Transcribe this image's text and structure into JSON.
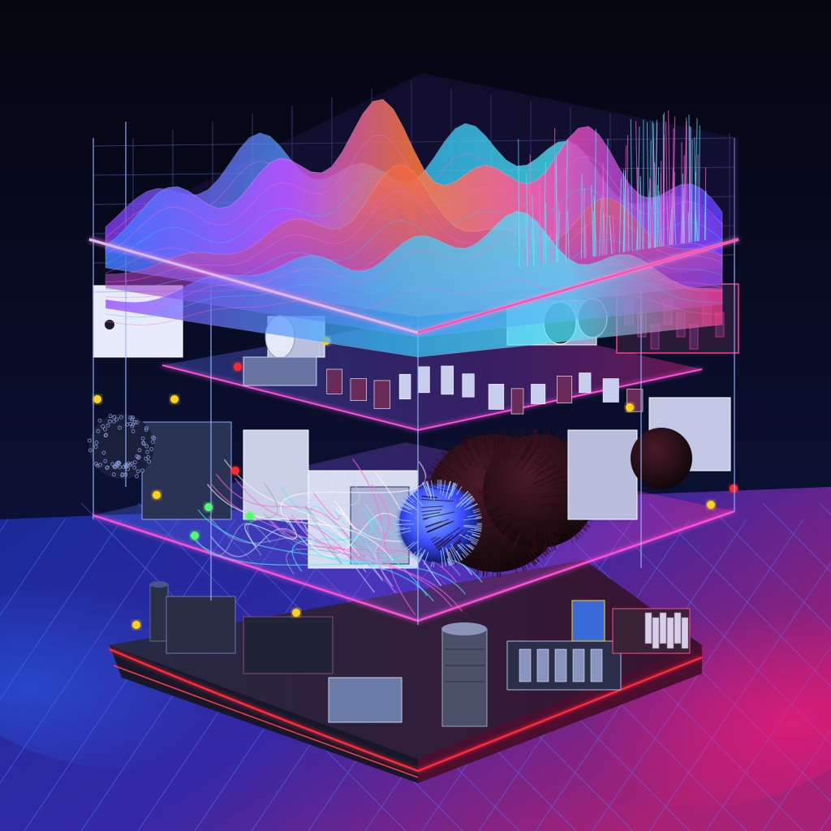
{
  "image": {
    "palette": {
      "background_top": "#07091a",
      "background_bottom": "#0c1238",
      "floor": "#1a2a9a",
      "floor_grid": "#4a6bff",
      "neon_magenta": "#ff2a8a",
      "neon_cyan": "#36c9ff",
      "neon_violet": "#7a4dff",
      "neon_orange": "#ff7a3a",
      "neon_pink": "#ff6ad5",
      "dark_metal": "#23263a",
      "board_dark": "#1b1f30",
      "led_yellow": "#ffd21f",
      "led_red": "#ff2a2a",
      "led_green": "#4dff6a"
    },
    "icons": [
      "wave-surface-icon",
      "grid-frame-icon",
      "circuit-board-icon",
      "cable-bundle-icon",
      "spiky-sphere-icon",
      "motor-cylinder-icon",
      "led-indicator-icon",
      "capacitor-icon"
    ]
  }
}
